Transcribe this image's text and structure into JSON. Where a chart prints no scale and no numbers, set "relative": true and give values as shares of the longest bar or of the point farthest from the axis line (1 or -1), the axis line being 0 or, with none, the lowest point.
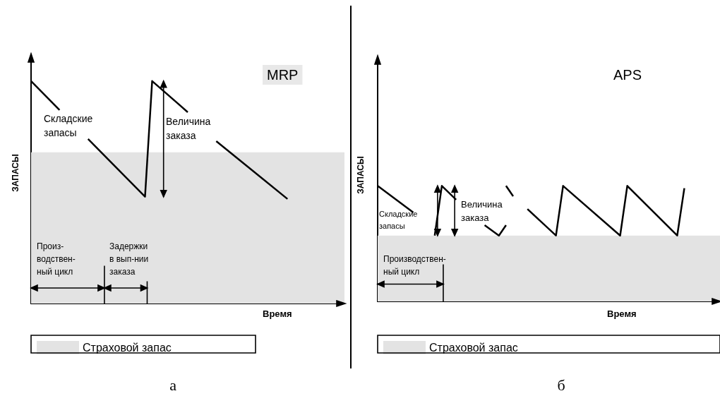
{
  "chart_data": [
    {
      "type": "line",
      "title": "MRP",
      "xlabel": "Время",
      "ylabel": "ЗАПАСЫ",
      "relative": true,
      "marker": "none",
      "legend": "bottom",
      "grid": false,
      "categories": [
        null,
        null,
        null,
        null,
        null,
        null,
        null,
        null,
        null,
        null,
        null,
        null,
        null,
        null,
        null,
        null,
        null,
        null,
        null,
        null,
        null,
        null,
        null,
        null,
        null,
        null,
        null,
        null,
        null,
        null,
        null,
        null,
        null,
        null,
        null,
        null,
        null,
        null,
        null,
        null,
        null,
        null,
        null,
        null,
        null
      ],
      "series": [
        {
          "color": "#000000",
          "values": [
            1,
            null,
            null,
            null,
            0.87,
            null,
            null,
            null,
            null,
            null,
            null,
            null,
            null,
            null,
            null,
            null,
            null,
            null,
            null,
            null,
            null,
            null,
            null,
            null,
            null,
            null,
            null,
            null,
            null,
            null,
            null,
            null,
            null,
            null,
            null,
            null,
            null,
            null,
            null,
            null,
            null,
            null,
            null,
            null,
            null
          ]
        },
        {
          "color": "#000000",
          "values": [
            null,
            null,
            null,
            null,
            null,
            null,
            null,
            null,
            0.74,
            null,
            null,
            null,
            null,
            null,
            null,
            null,
            0.48,
            1,
            null,
            null,
            null,
            null,
            0.86,
            null,
            null,
            null,
            null,
            null,
            null,
            null,
            null,
            null,
            null,
            null,
            null,
            null,
            null,
            null,
            null,
            null,
            null,
            null,
            null,
            null,
            null
          ]
        },
        {
          "color": "#000000",
          "values": [
            null,
            null,
            null,
            null,
            null,
            null,
            null,
            null,
            null,
            null,
            null,
            null,
            null,
            null,
            null,
            null,
            null,
            null,
            null,
            null,
            null,
            null,
            null,
            null,
            null,
            null,
            0.73,
            null,
            null,
            null,
            null,
            null,
            null,
            null,
            null,
            null,
            0.47,
            null,
            null,
            null,
            null,
            null,
            null,
            null,
            null
          ]
        }
      ],
      "bands": [
        {
          "axis": "y",
          "from": 0,
          "to": 0.68,
          "label": "Страховой запас",
          "color": "#e3e3e3"
        }
      ],
      "annotations": [
        "Складские\nзапасы",
        "Величина\nзаказа",
        "Произ-\nводствен-\nный цикл",
        "Задержки\nв вып-нии\nзаказа",
        "а"
      ]
    },
    {
      "type": "line",
      "title": "APS",
      "xlabel": "Время",
      "ylabel": "ЗАПАСЫ",
      "relative": true,
      "marker": "none",
      "legend": "bottom",
      "grid": false,
      "categories": [
        null,
        null,
        null,
        null,
        null,
        null,
        null,
        null,
        null,
        null,
        null,
        null,
        null,
        null,
        null,
        null,
        null,
        null,
        null,
        null,
        null,
        null,
        null,
        null,
        null,
        null,
        null,
        null,
        null,
        null,
        null,
        null,
        null,
        null,
        null,
        null,
        null,
        null,
        null,
        null,
        null,
        null,
        null,
        null,
        null,
        null,
        null,
        null,
        null
      ],
      "series": [
        {
          "color": "#000000",
          "values": [
            1,
            null,
            null,
            null,
            null,
            0.77,
            null,
            null,
            null,
            null,
            null,
            null,
            null,
            null,
            null,
            null,
            null,
            null,
            null,
            null,
            null,
            null,
            null,
            null,
            null,
            null,
            null,
            null,
            null,
            null,
            null,
            null,
            null,
            null,
            null,
            null,
            null,
            null,
            null,
            null,
            null,
            null,
            null,
            null,
            null,
            null,
            null,
            null,
            null
          ]
        },
        {
          "color": "#000000",
          "values": [
            null,
            null,
            null,
            null,
            null,
            null,
            null,
            null,
            0.57,
            1,
            null,
            0.88,
            null,
            null,
            null,
            null,
            null,
            null,
            null,
            null,
            null,
            null,
            null,
            null,
            null,
            null,
            null,
            null,
            null,
            null,
            null,
            null,
            null,
            null,
            null,
            null,
            null,
            null,
            null,
            null,
            null,
            null,
            null,
            null,
            null,
            null,
            null,
            null,
            null
          ]
        },
        {
          "color": "#000000",
          "values": [
            null,
            null,
            null,
            null,
            null,
            null,
            null,
            null,
            null,
            null,
            null,
            null,
            null,
            null,
            null,
            0.66,
            null,
            0.57,
            0.66,
            null,
            null,
            null,
            null,
            null,
            null,
            null,
            null,
            null,
            null,
            null,
            null,
            null,
            null,
            null,
            null,
            null,
            null,
            null,
            null,
            null,
            null,
            null,
            null,
            null,
            null,
            null,
            null,
            null,
            null
          ]
        },
        {
          "color": "#000000",
          "values": [
            null,
            null,
            null,
            null,
            null,
            null,
            null,
            null,
            null,
            null,
            null,
            null,
            null,
            null,
            null,
            null,
            null,
            null,
            1,
            0.91,
            null,
            null,
            null,
            null,
            null,
            null,
            null,
            null,
            null,
            null,
            null,
            null,
            null,
            null,
            null,
            null,
            null,
            null,
            null,
            null,
            null,
            null,
            null,
            null,
            null,
            null,
            null,
            null,
            null
          ]
        },
        {
          "color": "#000000",
          "values": [
            null,
            null,
            null,
            null,
            null,
            null,
            null,
            null,
            null,
            null,
            null,
            null,
            null,
            null,
            null,
            null,
            null,
            null,
            null,
            null,
            null,
            0.8,
            null,
            null,
            null,
            0.57,
            1,
            null,
            null,
            null,
            null,
            null,
            null,
            null,
            0.57,
            1,
            null,
            null,
            null,
            null,
            null,
            null,
            0.57,
            0.98,
            null,
            null,
            null,
            null,
            null
          ]
        }
      ],
      "bands": [
        {
          "axis": "y",
          "from": 0,
          "to": 0.57,
          "label": "Страховой запас",
          "color": "#e3e3e3"
        }
      ],
      "annotations": [
        "Складские\nзапасы",
        "Величина\nзаказа",
        "Производствен-\nный цикл",
        "б"
      ]
    }
  ]
}
